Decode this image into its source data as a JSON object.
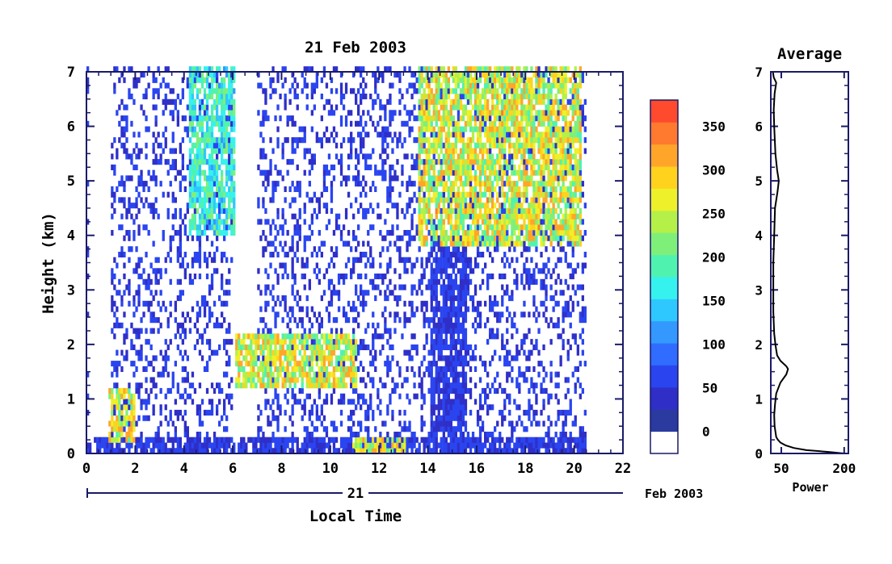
{
  "chart_data": [
    {
      "type": "heatmap",
      "title": "21 Feb 2003",
      "xlabel": "Local Time",
      "ylabel": "Height (km)",
      "xlim": [
        0,
        22
      ],
      "ylim": [
        0,
        7
      ],
      "x_ticks": [
        "0",
        "2",
        "4",
        "6",
        "8",
        "10",
        "12",
        "14",
        "16",
        "18",
        "20",
        "22"
      ],
      "y_ticks": [
        "0",
        "1",
        "2",
        "3",
        "4",
        "5",
        "6",
        "7"
      ],
      "date_bar": {
        "day_label": "21",
        "month_label": "Feb 2003"
      },
      "colorbar": {
        "range": [
          0,
          380
        ],
        "tick_labels": [
          "0",
          "50",
          "100",
          "150",
          "200",
          "250",
          "300",
          "350"
        ],
        "tick_values": [
          0,
          50,
          100,
          150,
          200,
          250,
          300,
          350
        ],
        "colors": [
          "#ffffff",
          "#2a3a9e",
          "#2f2fc8",
          "#2a45f0",
          "#2f6cff",
          "#3399ff",
          "#2ec8ff",
          "#36f2ee",
          "#50f2b0",
          "#7ef07a",
          "#b4f048",
          "#eef02a",
          "#ffd21e",
          "#ffa62a",
          "#ff7a2e",
          "#ff4a2e"
        ]
      },
      "features": [
        {
          "name": "surface layer",
          "x": [
            0,
            20.5
          ],
          "height_km": [
            0,
            0.2
          ],
          "level": 60
        },
        {
          "name": "boundary layer top",
          "x": [
            6.0,
            11.0
          ],
          "height_km": [
            1.2,
            2.2
          ],
          "level": 300
        },
        {
          "name": "low cloud",
          "x": [
            0.8,
            2.0
          ],
          "height_km": [
            0.2,
            1.1
          ],
          "level": 300
        },
        {
          "name": "low cloud",
          "x": [
            10.8,
            13.0
          ],
          "height_km": [
            0.0,
            0.3
          ],
          "level": 300
        },
        {
          "name": "fall streak",
          "x": [
            4.2,
            6.0
          ],
          "height_km": [
            4.0,
            7.0
          ],
          "level": 200
        },
        {
          "name": "precipitation shaft",
          "x": [
            14.0,
            15.5
          ],
          "height_km": [
            0,
            4.0
          ],
          "level": 60
        },
        {
          "name": "upper cloud",
          "x": [
            13.5,
            20.3
          ],
          "height_km": [
            3.8,
            7.0
          ],
          "level": 300
        }
      ]
    },
    {
      "type": "line",
      "title": "Average",
      "xlabel": "Power",
      "ylabel": "",
      "x_tick_labels": [
        "50",
        "200"
      ],
      "ylim": [
        0,
        7
      ],
      "y_ticks": [
        "0",
        "1",
        "2",
        "3",
        "4",
        "5",
        "6",
        "7"
      ],
      "series": [
        {
          "height_km": [
            0.0,
            0.03,
            0.06,
            0.1,
            0.15,
            0.2,
            0.25,
            0.3,
            0.4,
            0.5,
            0.7,
            0.9,
            1.1,
            1.3,
            1.45,
            1.55,
            1.6,
            1.7,
            1.8,
            1.9,
            2.0,
            2.2,
            2.6,
            3.0,
            3.5,
            4.0,
            4.5,
            4.8,
            5.0,
            5.2,
            5.5,
            6.0,
            6.3,
            6.6,
            6.8,
            6.9,
            7.0
          ],
          "power": [
            200,
            160,
            110,
            80,
            60,
            48,
            42,
            38,
            36,
            34,
            33,
            35,
            38,
            48,
            62,
            66,
            62,
            48,
            40,
            38,
            36,
            33,
            31,
            31,
            31,
            33,
            35,
            41,
            44,
            40,
            36,
            33,
            32,
            34,
            38,
            32,
            30
          ]
        }
      ]
    }
  ]
}
